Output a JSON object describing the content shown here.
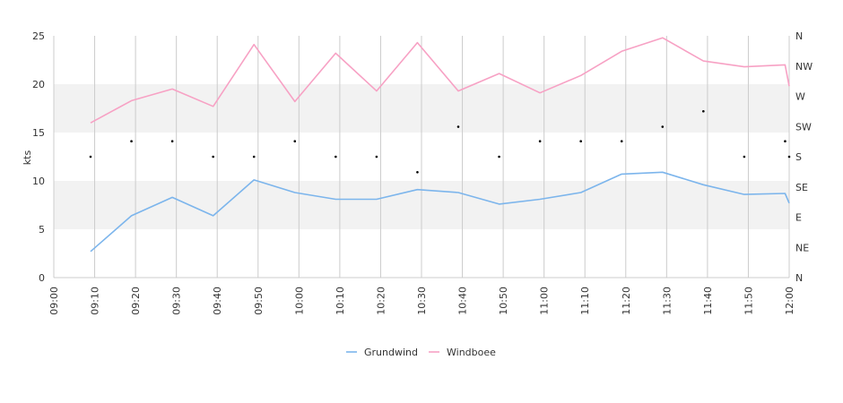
{
  "chart_data": {
    "type": "line",
    "title": "",
    "xlabel": "",
    "ylabel": "kts",
    "x_ticks": [
      "09:00",
      "09:10",
      "09:20",
      "09:30",
      "09:40",
      "09:50",
      "10:00",
      "10:10",
      "10:20",
      "10:30",
      "10:40",
      "10:50",
      "11:00",
      "11:10",
      "11:20",
      "11:30",
      "11:40",
      "11:50",
      "12:00"
    ],
    "ylim": [
      0,
      25
    ],
    "y_ticks": [
      0,
      5,
      10,
      15,
      20,
      25
    ],
    "y2_ticks": [
      "N",
      "NE",
      "E",
      "SE",
      "S",
      "SW",
      "W",
      "NW",
      "N"
    ],
    "grid": {
      "horizontal_bands": true,
      "vertical_lines": true
    },
    "legend_position": "bottom-center",
    "series": [
      {
        "name": "Grundwind",
        "color": "#7cb5ec",
        "x": [
          "09:09",
          "09:19",
          "09:29",
          "09:39",
          "09:49",
          "09:59",
          "10:09",
          "10:19",
          "10:29",
          "10:39",
          "10:49",
          "10:59",
          "11:09",
          "11:19",
          "11:29",
          "11:39",
          "11:49",
          "11:59",
          "12:00"
        ],
        "values": [
          2.7,
          6.4,
          8.3,
          6.4,
          10.1,
          8.8,
          8.1,
          8.1,
          9.1,
          8.8,
          7.6,
          8.1,
          8.8,
          10.7,
          10.9,
          9.6,
          8.6,
          8.7,
          7.7
        ]
      },
      {
        "name": "Windboee",
        "color": "#f7a1c4",
        "x": [
          "09:09",
          "09:19",
          "09:29",
          "09:39",
          "09:49",
          "09:59",
          "10:09",
          "10:19",
          "10:29",
          "10:39",
          "10:49",
          "10:59",
          "11:09",
          "11:19",
          "11:29",
          "11:39",
          "11:49",
          "11:59",
          "12:00"
        ],
        "values": [
          16.0,
          18.3,
          19.5,
          17.7,
          24.1,
          18.2,
          23.2,
          19.3,
          24.3,
          19.3,
          21.1,
          19.1,
          20.9,
          23.4,
          24.8,
          22.4,
          21.8,
          22.0,
          19.8
        ]
      }
    ],
    "direction": {
      "color": "#000000",
      "axis": "right",
      "x": [
        "09:09",
        "09:19",
        "09:29",
        "09:39",
        "09:49",
        "09:59",
        "10:09",
        "10:19",
        "10:29",
        "10:39",
        "10:49",
        "10:59",
        "11:09",
        "11:19",
        "11:29",
        "11:39",
        "11:49",
        "11:59",
        "12:00"
      ],
      "values": [
        12.5,
        14.1,
        14.1,
        12.5,
        12.5,
        14.1,
        12.5,
        12.5,
        10.9,
        15.6,
        12.5,
        14.1,
        14.1,
        14.1,
        15.6,
        17.2,
        12.5,
        14.1,
        12.5
      ]
    },
    "band_color": "#f2f2f2",
    "grid_color": "#cccccc"
  }
}
